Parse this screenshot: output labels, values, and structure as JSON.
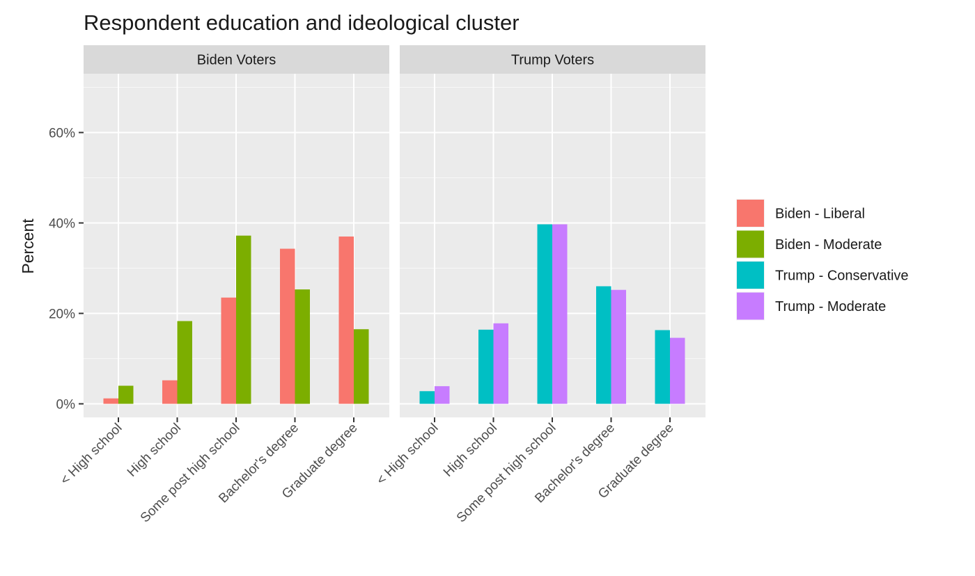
{
  "chart_data": {
    "type": "bar",
    "title": "Respondent education and ideological cluster",
    "ylabel": "Percent",
    "xlabel": "",
    "ylim": [
      -3,
      73
    ],
    "yticks": [
      0,
      20,
      40,
      60
    ],
    "ytick_labels": [
      "0%",
      "20%",
      "40%",
      "60%"
    ],
    "grid": true,
    "legend_position": "right",
    "categories": [
      "< High school",
      "High school",
      "Some post high school",
      "Bachelor's degree",
      "Graduate degree"
    ],
    "panels": [
      {
        "name": "Biden Voters",
        "series": [
          {
            "name": "Biden - Liberal",
            "color": "#F8766D",
            "values": [
              1.2,
              5.2,
              23.5,
              34.3,
              37.0
            ]
          },
          {
            "name": "Biden - Moderate",
            "color": "#7CAE00",
            "values": [
              4.0,
              18.3,
              37.2,
              25.3,
              16.5
            ]
          }
        ]
      },
      {
        "name": "Trump Voters",
        "series": [
          {
            "name": "Trump - Conservative",
            "color": "#00BFC4",
            "values": [
              2.8,
              16.4,
              39.7,
              26.0,
              16.3
            ]
          },
          {
            "name": "Trump - Moderate",
            "color": "#C77CFF",
            "values": [
              3.9,
              17.8,
              39.7,
              25.2,
              14.6
            ]
          }
        ]
      }
    ],
    "legend": [
      {
        "name": "Biden - Liberal",
        "color": "#F8766D"
      },
      {
        "name": "Biden - Moderate",
        "color": "#7CAE00"
      },
      {
        "name": "Trump - Conservative",
        "color": "#00BFC4"
      },
      {
        "name": "Trump - Moderate",
        "color": "#C77CFF"
      }
    ]
  }
}
